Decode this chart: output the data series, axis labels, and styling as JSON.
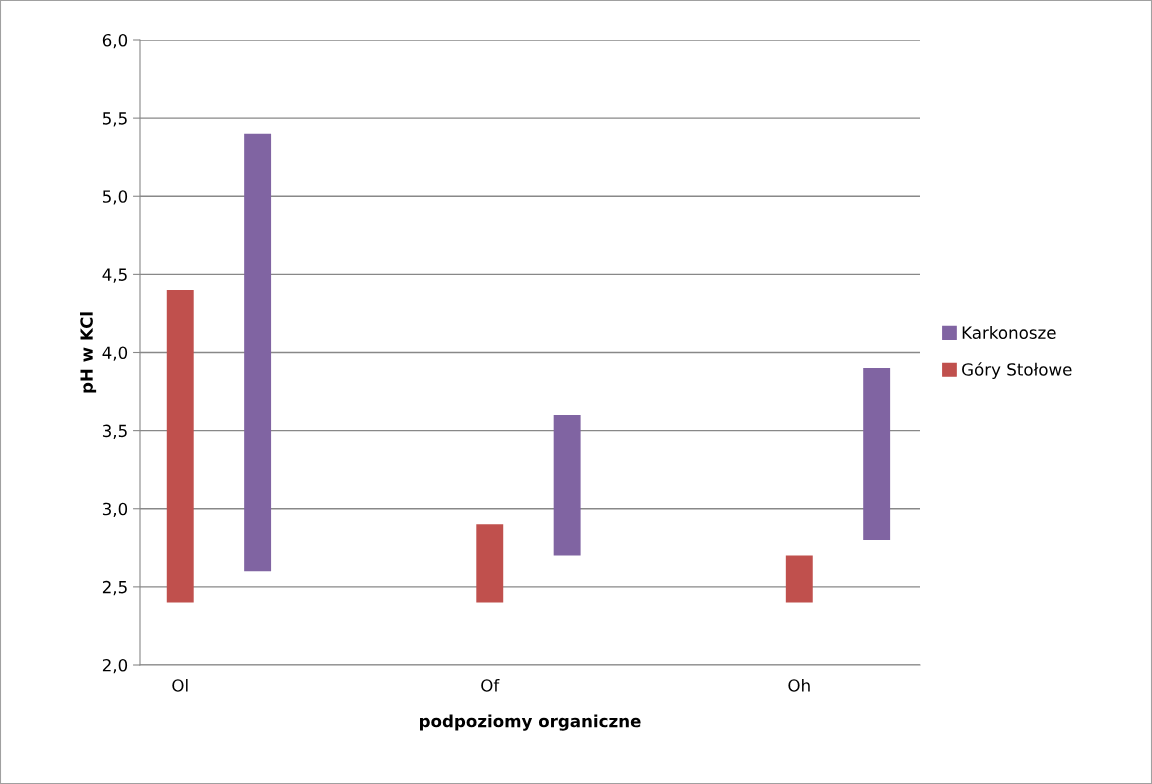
{
  "chart_data": {
    "type": "bar",
    "xlabel": "podpoziomy organiczne",
    "ylabel": "pH w KCl",
    "categories": [
      "Ol",
      "Of",
      "Oh"
    ],
    "series": [
      {
        "name": "Góry Stołowe",
        "color": "#c0504d",
        "base": [
          2.4,
          2.4,
          2.4
        ],
        "values": [
          2.0,
          0.5,
          0.3
        ]
      },
      {
        "name": "Karkonosze",
        "color": "#8064a2",
        "base": [
          2.6,
          2.7,
          2.8
        ],
        "values": [
          2.8,
          0.9,
          1.1
        ]
      }
    ],
    "ylim": [
      2.0,
      6.0
    ],
    "yticks": [
      {
        "value": 2.0,
        "label": "2,0"
      },
      {
        "value": 2.5,
        "label": "2,5"
      },
      {
        "value": 3.0,
        "label": "3,0"
      },
      {
        "value": 3.5,
        "label": "3,5"
      },
      {
        "value": 4.0,
        "label": "4,0"
      },
      {
        "value": 4.5,
        "label": "4,5"
      },
      {
        "value": 5.0,
        "label": "5,0"
      },
      {
        "value": 5.5,
        "label": "5,5"
      },
      {
        "value": 6.0,
        "label": "6,0"
      }
    ],
    "grid": "y",
    "legend": "right"
  }
}
